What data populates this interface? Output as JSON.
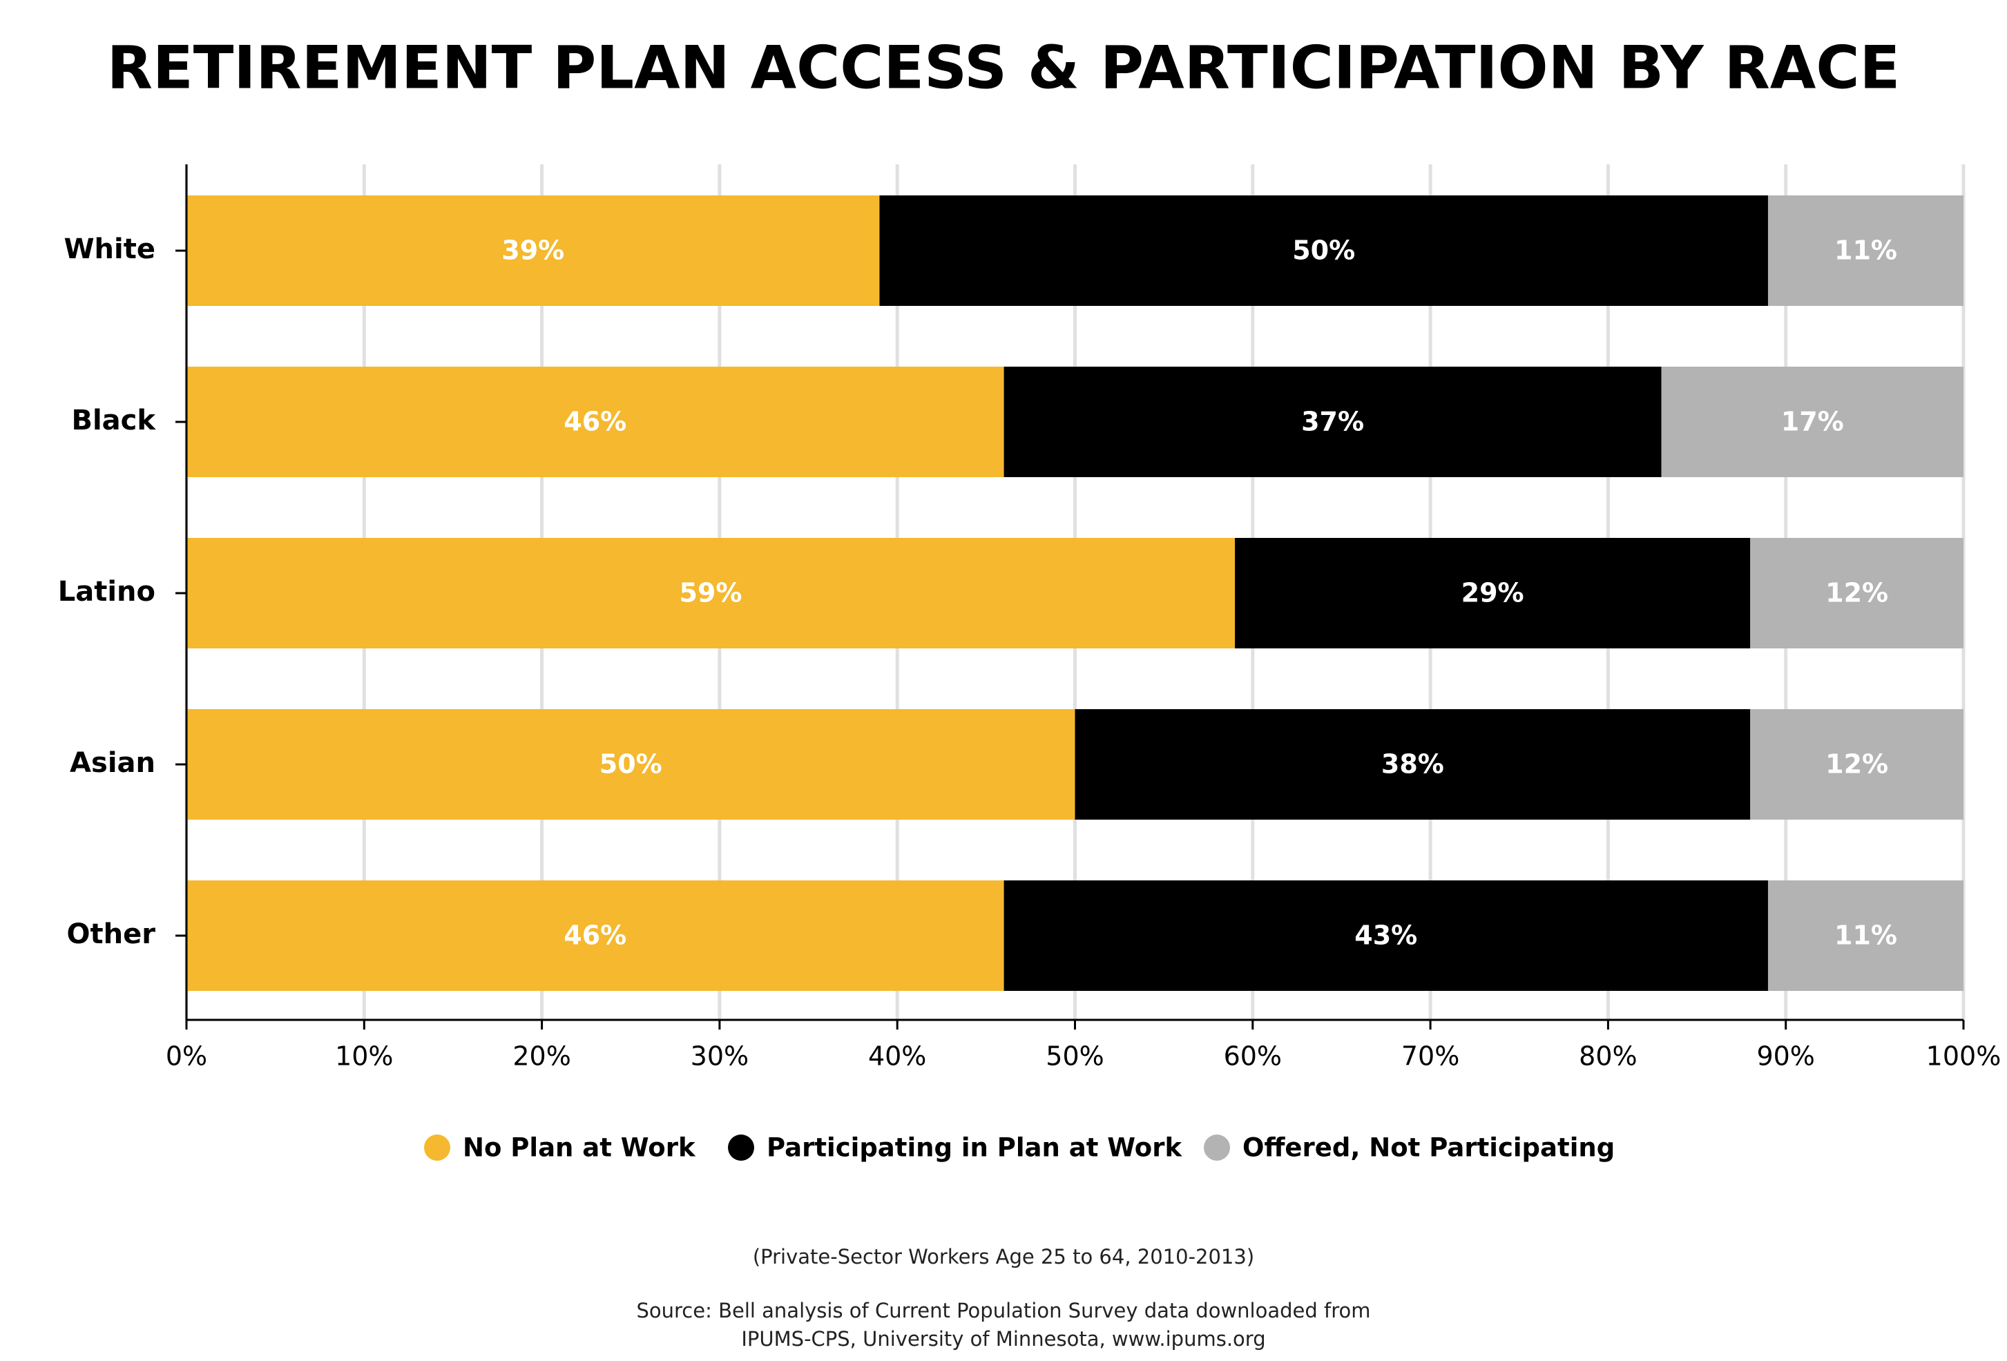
{
  "chart_data": {
    "type": "stacked-bar-horizontal",
    "title": "RETIREMENT PLAN ACCESS & PARTICIPATION BY RACE",
    "categories": [
      "White",
      "Black",
      "Latino",
      "Asian",
      "Other"
    ],
    "series": [
      {
        "name": "No Plan at Work",
        "color": "#f5b82e",
        "values": [
          39,
          46,
          59,
          50,
          46
        ],
        "value_labels": [
          "39%",
          "46%",
          "59%",
          "50%",
          "46%"
        ]
      },
      {
        "name": "Participating in Plan at Work",
        "color": "#000000",
        "values": [
          50,
          37,
          29,
          38,
          43
        ],
        "value_labels": [
          "50%",
          "37%",
          "29%",
          "38%",
          "43%"
        ]
      },
      {
        "name": "Offered, Not Participating",
        "color": "#b3b3b3",
        "values": [
          11,
          17,
          12,
          12,
          11
        ],
        "value_labels": [
          "11%",
          "17%",
          "12%",
          "12%",
          "11%"
        ]
      }
    ],
    "xlim": [
      0,
      100
    ],
    "xticks": [
      {
        "value": 0,
        "label": "0%"
      },
      {
        "value": 10,
        "label": "10%"
      },
      {
        "value": 20,
        "label": "20%"
      },
      {
        "value": 30,
        "label": "30%"
      },
      {
        "value": 40,
        "label": "40%"
      },
      {
        "value": 50,
        "label": "50%"
      },
      {
        "value": 60,
        "label": "60%"
      },
      {
        "value": 70,
        "label": "70%"
      },
      {
        "value": 80,
        "label": "80%"
      },
      {
        "value": 90,
        "label": "90%"
      },
      {
        "value": 100,
        "label": "100%"
      }
    ],
    "grid": true,
    "legend": "bottom",
    "notes": [
      "(Private-Sector Workers Age 25 to 64, 2010-2013)",
      "Source: Bell analysis of Current Population Survey data downloaded from",
      "IPUMS-CPS, University of Minnesota, www.ipums.org"
    ]
  }
}
